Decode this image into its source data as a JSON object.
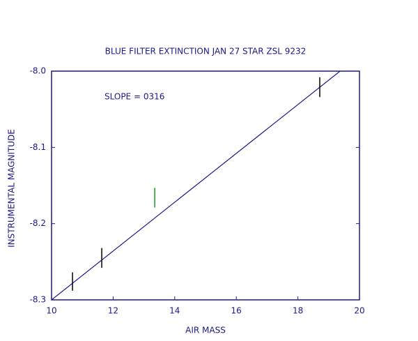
{
  "chart_data": {
    "type": "scatter",
    "title": "BLUE FILTER EXTINCTION JAN 27  STAR ZSL 9232",
    "annotation": "SLOPE = 0316",
    "x_label": "AIR MASS",
    "y_label": "INSTRUMENTAL MAGNITUDE",
    "xlim": [
      10,
      20
    ],
    "ylim": [
      -8.3,
      -8.0
    ],
    "xticks": [
      10,
      12,
      14,
      16,
      18,
      20
    ],
    "yticks": [
      {
        "value": -8.0,
        "label": "-8.0"
      },
      {
        "value": -8.1,
        "label": "-8.1"
      },
      {
        "value": -8.2,
        "label": "-8.2"
      },
      {
        "value": -8.3,
        "label": "-8.3"
      }
    ],
    "axis_color": "#1a1a8c",
    "points": {
      "x": [
        10.68,
        11.63,
        13.35,
        18.71
      ],
      "values": [
        -8.276,
        -8.245,
        -8.166,
        -8.021
      ],
      "errors": [
        0.012,
        0.013,
        0.013,
        0.013
      ],
      "colors": [
        "#000000",
        "#000000",
        "#1aa01a",
        "#000000"
      ]
    },
    "fit": {
      "x": [
        10,
        19.37
      ],
      "values": [
        -8.3,
        -8.0
      ],
      "color": "#1a1a8c"
    }
  }
}
